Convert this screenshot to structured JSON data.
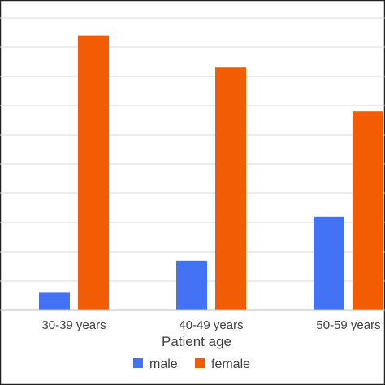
{
  "chart_data": {
    "type": "bar",
    "categories": [
      "30-39 years",
      "40-49 years",
      "50-59 years"
    ],
    "series": [
      {
        "name": "male",
        "values": [
          6,
          17,
          32
        ],
        "color": "#4472f5"
      },
      {
        "name": "female",
        "values": [
          94,
          83,
          68
        ],
        "color": "#f25c05"
      }
    ],
    "xlabel": "Patient age",
    "ylim": [
      0,
      100
    ],
    "grid": true,
    "legend_position": "bottom"
  }
}
